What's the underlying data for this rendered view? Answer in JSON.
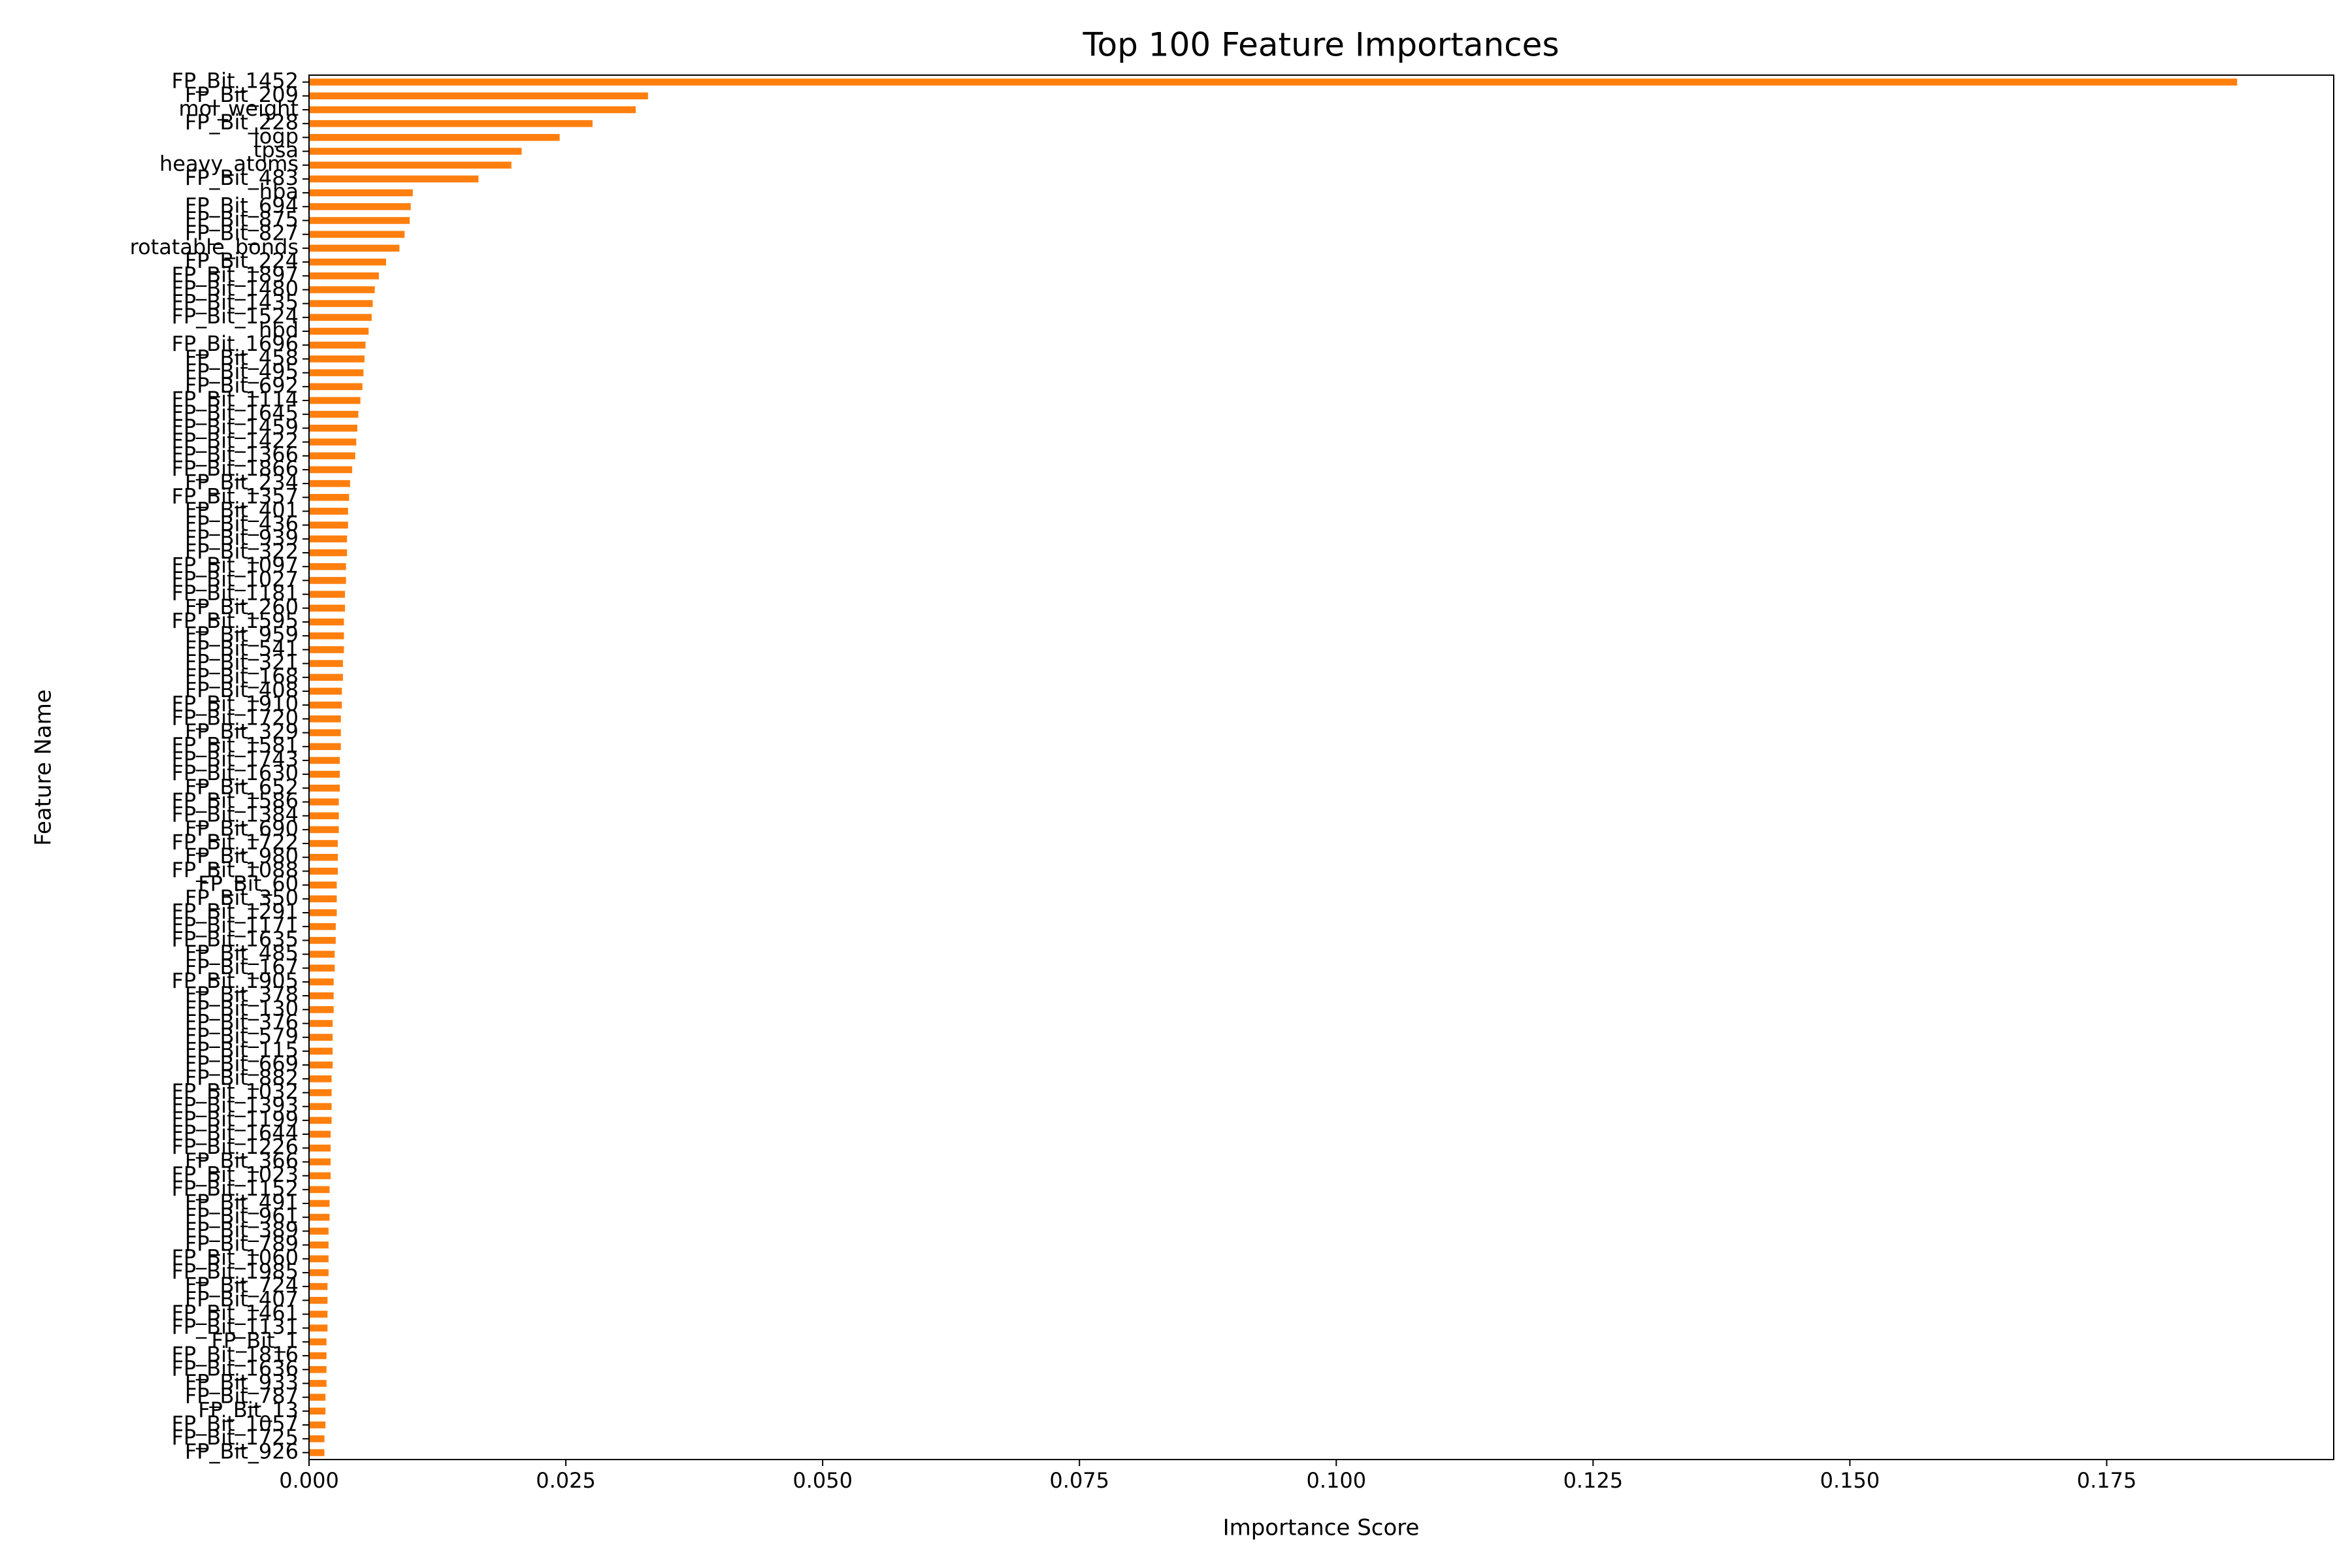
{
  "chart_data": {
    "type": "barh",
    "title": "Top 100 Feature Importances",
    "xlabel": "Importance Score",
    "ylabel": "Feature Name",
    "color": "#ff7f0e",
    "categories": [
      "FP_Bit_1452",
      "FP_Bit_209",
      "mol_weight",
      "FP_Bit_228",
      "logp",
      "tpsa",
      "heavy_atoms",
      "FP_Bit_483",
      "hba",
      "FP_Bit_694",
      "FP_Bit_875",
      "FP_Bit_827",
      "rotatable_bonds",
      "FP_Bit_224",
      "FP_Bit_1897",
      "FP_Bit_1480",
      "FP_Bit_1435",
      "FP_Bit_1524",
      "hbd",
      "FP_Bit_1696",
      "FP_Bit_458",
      "FP_Bit_495",
      "FP_Bit_692",
      "FP_Bit_1114",
      "FP_Bit_1645",
      "FP_Bit_1459",
      "FP_Bit_1422",
      "FP_Bit_1366",
      "FP_Bit_1866",
      "FP_Bit_234",
      "FP_Bit_1357",
      "FP_Bit_401",
      "FP_Bit_436",
      "FP_Bit_939",
      "FP_Bit_322",
      "FP_Bit_1097",
      "FP_Bit_1027",
      "FP_Bit_1181",
      "FP_Bit_260",
      "FP_Bit_1595",
      "FP_Bit_959",
      "FP_Bit_541",
      "FP_Bit_321",
      "FP_Bit_168",
      "FP_Bit_408",
      "FP_Bit_1910",
      "FP_Bit_1720",
      "FP_Bit_329",
      "FP_Bit_1581",
      "FP_Bit_1743",
      "FP_Bit_1630",
      "FP_Bit_652",
      "FP_Bit_1586",
      "FP_Bit_1384",
      "FP_Bit_690",
      "FP_Bit_1722",
      "FP_Bit_980",
      "FP_Bit_1088",
      "FP_Bit_60",
      "FP_Bit_350",
      "FP_Bit_1291",
      "FP_Bit_1171",
      "FP_Bit_1635",
      "FP_Bit_485",
      "FP_Bit_167",
      "FP_Bit_1905",
      "FP_Bit_378",
      "FP_Bit_130",
      "FP_Bit_376",
      "FP_Bit_579",
      "FP_Bit_115",
      "FP_Bit_669",
      "FP_Bit_882",
      "FP_Bit_1032",
      "FP_Bit_1393",
      "FP_Bit_1199",
      "FP_Bit_1644",
      "FP_Bit_1226",
      "FP_Bit_366",
      "FP_Bit_1023",
      "FP_Bit_1152",
      "FP_Bit_491",
      "FP_Bit_961",
      "FP_Bit_389",
      "FP_Bit_789",
      "FP_Bit_1060",
      "FP_Bit_1985",
      "FP_Bit_724",
      "FP_Bit_407",
      "FP_Bit_1461",
      "FP_Bit_1131",
      "FP_Bit_1",
      "FP_Bit_1816",
      "FP_Bit_1636",
      "FP_Bit_933",
      "FP_Bit_787",
      "FP_Bit_13",
      "FP_Bit_1057",
      "FP_Bit_1725",
      "FP_Bit_926"
    ],
    "values": [
      0.1877,
      0.033,
      0.0318,
      0.0276,
      0.0244,
      0.0207,
      0.0197,
      0.0165,
      0.0101,
      0.0099,
      0.0098,
      0.0093,
      0.0088,
      0.0075,
      0.0068,
      0.0064,
      0.0062,
      0.0061,
      0.0058,
      0.0055,
      0.0054,
      0.0053,
      0.0052,
      0.005,
      0.0048,
      0.0047,
      0.0046,
      0.0045,
      0.0042,
      0.004,
      0.0039,
      0.0038,
      0.0038,
      0.0037,
      0.0037,
      0.0036,
      0.0036,
      0.0035,
      0.0035,
      0.0034,
      0.0034,
      0.0034,
      0.0033,
      0.0033,
      0.0032,
      0.0032,
      0.0031,
      0.0031,
      0.0031,
      0.003,
      0.003,
      0.003,
      0.0029,
      0.0029,
      0.0029,
      0.0028,
      0.0028,
      0.0028,
      0.0027,
      0.0027,
      0.0027,
      0.0026,
      0.0026,
      0.0025,
      0.0025,
      0.0024,
      0.0024,
      0.0024,
      0.0023,
      0.0023,
      0.0023,
      0.0023,
      0.0022,
      0.0022,
      0.0022,
      0.0022,
      0.0021,
      0.0021,
      0.0021,
      0.0021,
      0.002,
      0.002,
      0.002,
      0.0019,
      0.0019,
      0.0019,
      0.0019,
      0.0018,
      0.0018,
      0.0018,
      0.0018,
      0.0017,
      0.0017,
      0.0017,
      0.0017,
      0.0016,
      0.0016,
      0.0016,
      0.0015,
      0.0015
    ],
    "xlim": [
      0,
      0.1971
    ],
    "xticks": [
      {
        "value": 0,
        "label": "0.000"
      },
      {
        "value": 0.025,
        "label": "0.025"
      },
      {
        "value": 0.05,
        "label": "0.050"
      },
      {
        "value": 0.075,
        "label": "0.075"
      },
      {
        "value": 0.1,
        "label": "0.100"
      },
      {
        "value": 0.125,
        "label": "0.125"
      },
      {
        "value": 0.15,
        "label": "0.150"
      },
      {
        "value": 0.175,
        "label": "0.175"
      }
    ],
    "grid": false
  }
}
